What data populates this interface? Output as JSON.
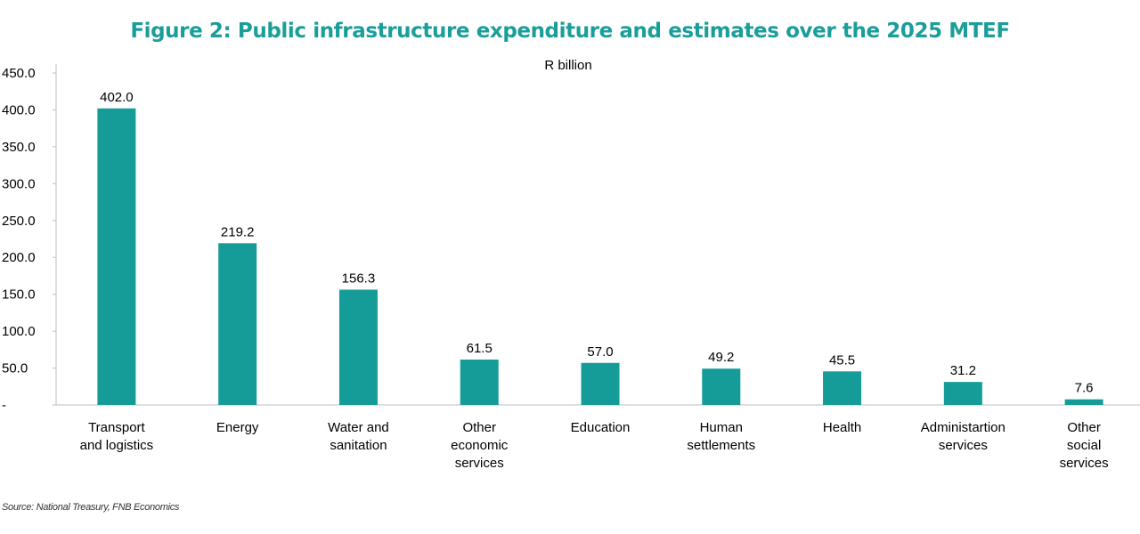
{
  "chart_data": {
    "type": "bar",
    "title": "Figure 2: Public infrastructure expenditure and estimates over the 2025 MTEF",
    "subtitle": "R billion",
    "categories": [
      [
        "Transport",
        "and logistics"
      ],
      [
        "Energy"
      ],
      [
        "Water and",
        "sanitation"
      ],
      [
        "Other",
        "economic",
        "services"
      ],
      [
        "Education"
      ],
      [
        "Human",
        "settlements"
      ],
      [
        "Health"
      ],
      [
        "Administartion",
        "services"
      ],
      [
        "Other",
        "social",
        "services"
      ]
    ],
    "series": [
      {
        "values": [
          402.0,
          219.2,
          156.3,
          61.5,
          57.0,
          49.2,
          45.5,
          31.2,
          7.6
        ],
        "labels": [
          "402.0",
          "219.2",
          "156.3",
          "61.5",
          "57.0",
          "49.2",
          "45.5",
          "31.2",
          "7.6"
        ]
      }
    ],
    "xlabel": "",
    "ylabel": "",
    "ylim": [
      0,
      450
    ],
    "yticks": [
      0,
      50,
      100,
      150,
      200,
      250,
      300,
      350,
      400,
      450
    ],
    "ytick_labels": [
      "-",
      "50.0",
      "100.0",
      "150.0",
      "200.0",
      "250.0",
      "300.0",
      "350.0",
      "400.0",
      "450.0"
    ],
    "grid": false,
    "legend": "none",
    "bar_color": "#159c99",
    "title_color": "#1a9e9a"
  },
  "source": "Source: National Treasury, FNB Economics"
}
